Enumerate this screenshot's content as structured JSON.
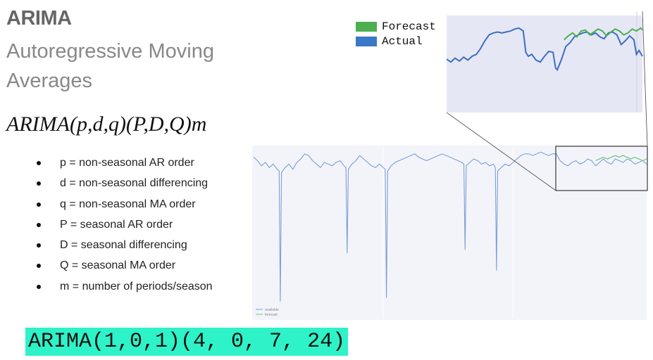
{
  "slide": {
    "title": "ARIMA",
    "subtitle": "Autoregressive Moving Averages",
    "formula": "ARIMA(p,d,q)(P,D,Q)m",
    "params": [
      "p = non-seasonal AR order",
      "d = non-seasonal differencing",
      "q = non-seasonal MA order",
      "P = seasonal AR order",
      "D = seasonal differencing",
      "Q = seasonal MA order",
      "m = number of periods/season"
    ],
    "model": "ARIMA(1,0,1)(4, 0, 7, 24)"
  },
  "legend": [
    {
      "label": "Forecast",
      "color": "#4caf50"
    },
    {
      "label": "Actual",
      "color": "#3a78c8"
    }
  ],
  "mini_legend": [
    "available",
    "forecast"
  ],
  "colors": {
    "actual_main": "#7b9fd4",
    "forecast_main": "#6cc47a",
    "actual_zoom": "#3a6fc4",
    "forecast_zoom": "#4caf50",
    "plot_bg_main": "#f3f4fa",
    "plot_bg_zoom": "#e6e7f5"
  },
  "chart_data": [
    {
      "type": "line",
      "name": "full-series",
      "x_range": [
        0,
        100
      ],
      "y_range": [
        0,
        100
      ],
      "grid": true,
      "zoom_window_x": [
        77,
        100
      ],
      "series": [
        {
          "name": "available",
          "points": [
            [
              0,
              94
            ],
            [
              1,
              92
            ],
            [
              2,
              89
            ],
            [
              3,
              91
            ],
            [
              4,
              88
            ],
            [
              5,
              90
            ],
            [
              6,
              87
            ],
            [
              6.5,
              86
            ],
            [
              6.8,
              10
            ],
            [
              7.1,
              85
            ],
            [
              8,
              88
            ],
            [
              9,
              90
            ],
            [
              10,
              87
            ],
            [
              11,
              91
            ],
            [
              12,
              93
            ],
            [
              13,
              96
            ],
            [
              14,
              95
            ],
            [
              15,
              92
            ],
            [
              16,
              90
            ],
            [
              17,
              88
            ],
            [
              18,
              91
            ],
            [
              19,
              90
            ],
            [
              20,
              89
            ],
            [
              21,
              91
            ],
            [
              22,
              92
            ],
            [
              23,
              89
            ],
            [
              23.5,
              88
            ],
            [
              23.8,
              38
            ],
            [
              24.1,
              87
            ],
            [
              25,
              90
            ],
            [
              26,
              92
            ],
            [
              27,
              95
            ],
            [
              28,
              93
            ],
            [
              29,
              91
            ],
            [
              30,
              89
            ],
            [
              31,
              88
            ],
            [
              32,
              90
            ],
            [
              33,
              88
            ],
            [
              33.5,
              87
            ],
            [
              33.8,
              12
            ],
            [
              34.1,
              86
            ],
            [
              35,
              89
            ],
            [
              36,
              91
            ],
            [
              37,
              92
            ],
            [
              38,
              93
            ],
            [
              39,
              94
            ],
            [
              40,
              95
            ],
            [
              41,
              96
            ],
            [
              42,
              94
            ],
            [
              43,
              93
            ],
            [
              44,
              92
            ],
            [
              45,
              93
            ],
            [
              46,
              94
            ],
            [
              47,
              95
            ],
            [
              48,
              96
            ],
            [
              49,
              95
            ],
            [
              50,
              94
            ],
            [
              51,
              93
            ],
            [
              52,
              92
            ],
            [
              53,
              91
            ],
            [
              53.5,
              90
            ],
            [
              53.8,
              40
            ],
            [
              54.1,
              89
            ],
            [
              55,
              91
            ],
            [
              56,
              93
            ],
            [
              57,
              92
            ],
            [
              58,
              90
            ],
            [
              59,
              91
            ],
            [
              60,
              89
            ],
            [
              61,
              90
            ],
            [
              61.5,
              88
            ],
            [
              61.8,
              28
            ],
            [
              62.1,
              86
            ],
            [
              63,
              88
            ],
            [
              64,
              90
            ],
            [
              65,
              89
            ],
            [
              66,
              91
            ],
            [
              67,
              93
            ],
            [
              68,
              95
            ],
            [
              69,
              96
            ],
            [
              70,
              96
            ],
            [
              71,
              95
            ],
            [
              72,
              96
            ],
            [
              73,
              97
            ],
            [
              74,
              96
            ],
            [
              75,
              95
            ],
            [
              76,
              96
            ],
            [
              77,
              96
            ],
            [
              78,
              92
            ],
            [
              79,
              90
            ],
            [
              80,
              89
            ],
            [
              81,
              91
            ],
            [
              82,
              92
            ],
            [
              83,
              90
            ],
            [
              84,
              91
            ],
            [
              85,
              93
            ],
            [
              86,
              92
            ],
            [
              87,
              89
            ],
            [
              88,
              91
            ],
            [
              89,
              93
            ],
            [
              90,
              91
            ],
            [
              91,
              90
            ],
            [
              92,
              93
            ],
            [
              93,
              92
            ],
            [
              94,
              91
            ],
            [
              95,
              93
            ],
            [
              96,
              92
            ],
            [
              97,
              90
            ],
            [
              98,
              91
            ],
            [
              99,
              92
            ],
            [
              100,
              90
            ]
          ]
        },
        {
          "name": "forecast",
          "points": [
            [
              87,
              92
            ],
            [
              88,
              93
            ],
            [
              89,
              94
            ],
            [
              90,
              93
            ],
            [
              91,
              94
            ],
            [
              92,
              95
            ],
            [
              93,
              94
            ],
            [
              94,
              95
            ],
            [
              95,
              94
            ],
            [
              96,
              93
            ],
            [
              97,
              94
            ],
            [
              98,
              93
            ],
            [
              99,
              92
            ],
            [
              100,
              93
            ]
          ]
        }
      ],
      "legend": "bottom-left"
    },
    {
      "type": "line",
      "name": "zoomed-detail",
      "x_range": [
        77,
        100
      ],
      "y_range": [
        0,
        100
      ],
      "series": [
        {
          "name": "Actual",
          "points": [
            [
              77,
              55
            ],
            [
              77.5,
              52
            ],
            [
              78,
              56
            ],
            [
              78.5,
              53
            ],
            [
              79,
              57
            ],
            [
              79.5,
              54
            ],
            [
              80,
              58
            ],
            [
              80.5,
              60
            ],
            [
              81,
              66
            ],
            [
              81.5,
              74
            ],
            [
              82,
              80
            ],
            [
              82.5,
              82
            ],
            [
              83,
              83
            ],
            [
              83.5,
              82
            ],
            [
              84,
              83
            ],
            [
              84.5,
              84
            ],
            [
              85,
              86
            ],
            [
              85.5,
              87
            ],
            [
              86,
              84
            ],
            [
              86.3,
              62
            ],
            [
              86.6,
              58
            ],
            [
              87,
              60
            ],
            [
              87.5,
              54
            ],
            [
              88,
              52
            ],
            [
              88.5,
              58
            ],
            [
              89,
              63
            ],
            [
              89.5,
              62
            ],
            [
              89.8,
              46
            ],
            [
              90,
              44
            ],
            [
              90.5,
              55
            ],
            [
              91,
              68
            ],
            [
              91.5,
              72
            ],
            [
              92,
              78
            ],
            [
              92.5,
              80
            ],
            [
              93,
              82
            ],
            [
              93.5,
              83
            ],
            [
              94,
              80
            ],
            [
              94.5,
              82
            ],
            [
              95,
              78
            ],
            [
              95.5,
              76
            ],
            [
              96,
              82
            ],
            [
              96.5,
              83
            ],
            [
              97,
              80
            ],
            [
              97.5,
              70
            ],
            [
              98,
              74
            ],
            [
              98.5,
              79
            ],
            [
              99,
              75
            ],
            [
              99.3,
              60
            ],
            [
              99.6,
              64
            ],
            [
              100,
              58
            ]
          ]
        },
        {
          "name": "Forecast",
          "points": [
            [
              90.8,
              75
            ],
            [
              91.3,
              79
            ],
            [
              91.8,
              82
            ],
            [
              92.3,
              78
            ],
            [
              92.8,
              84
            ],
            [
              93.3,
              85
            ],
            [
              93.8,
              80
            ],
            [
              94.3,
              83
            ],
            [
              94.8,
              86
            ],
            [
              95.3,
              84
            ],
            [
              95.8,
              79
            ],
            [
              96.3,
              83
            ],
            [
              96.8,
              86
            ],
            [
              97.3,
              84
            ],
            [
              97.8,
              80
            ],
            [
              98.3,
              82
            ],
            [
              98.8,
              86
            ],
            [
              99.3,
              84
            ],
            [
              99.8,
              87
            ],
            [
              100,
              85
            ]
          ]
        }
      ],
      "legend": "top-left"
    }
  ]
}
